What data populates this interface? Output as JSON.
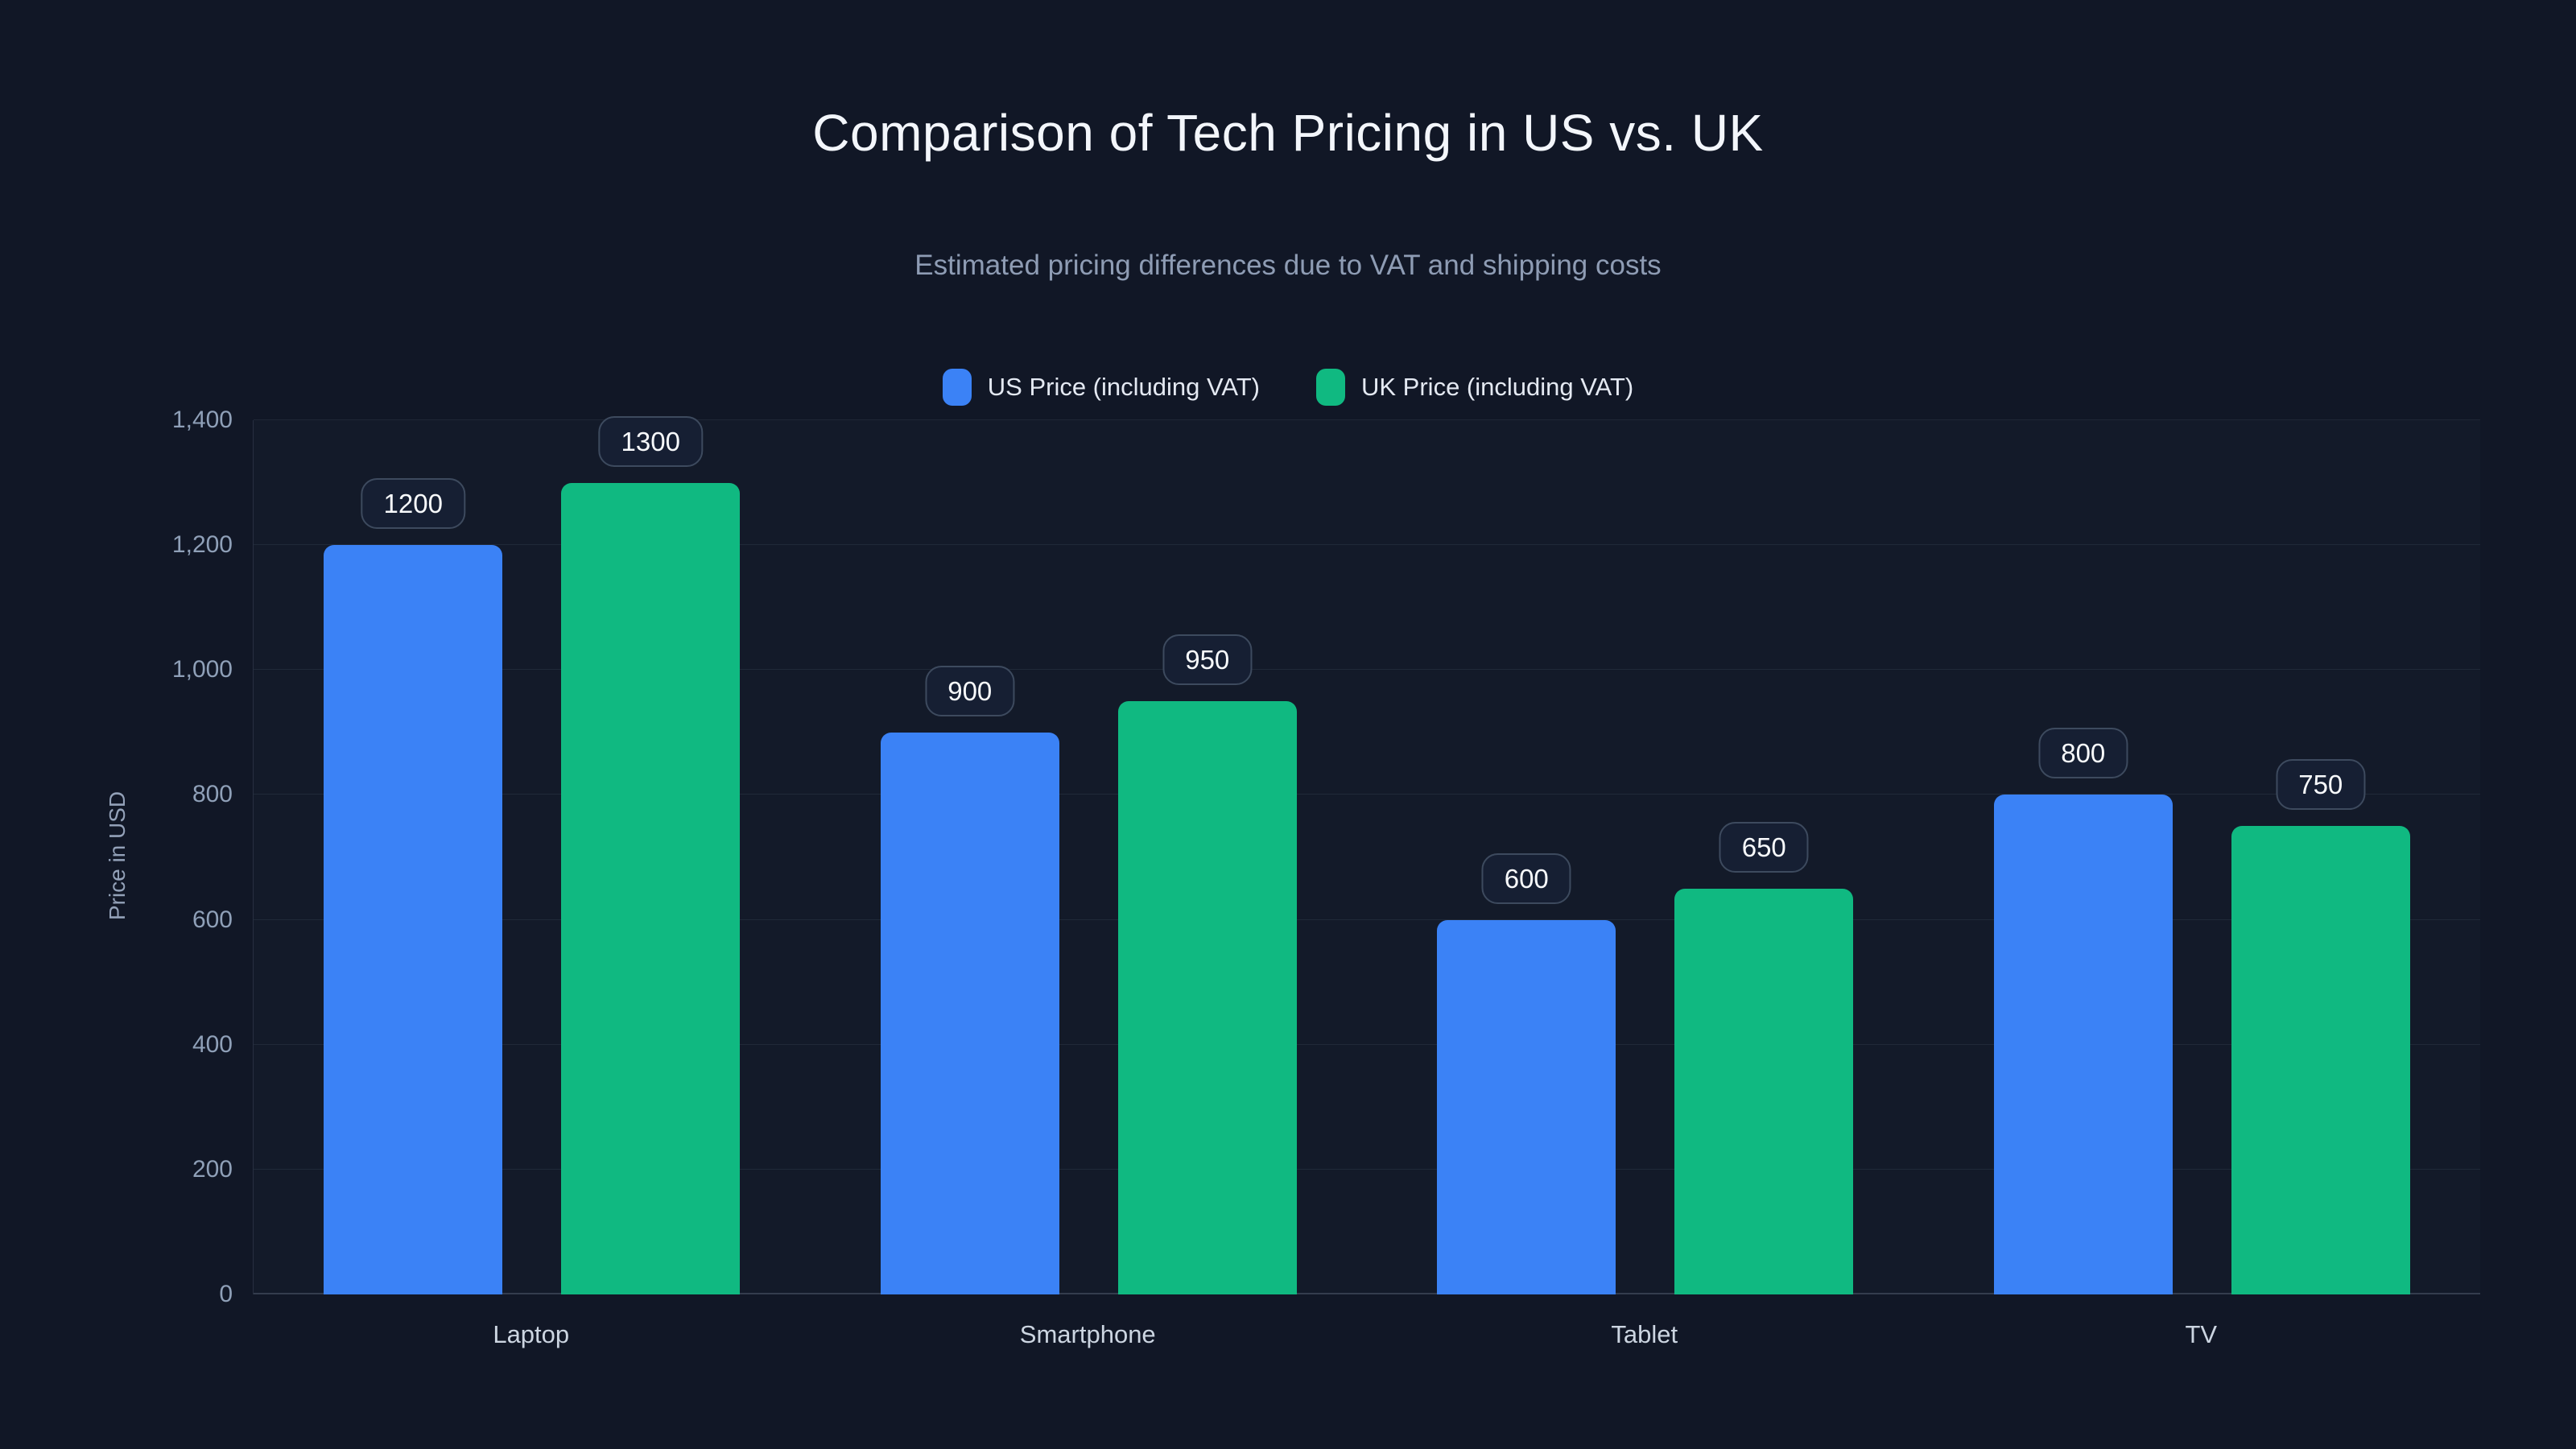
{
  "title": "Comparison of Tech Pricing in US vs. UK",
  "subtitle": "Estimated pricing differences due to VAT and shipping costs",
  "colors": {
    "background": "#111726",
    "us_series": "#3b82f6",
    "uk_series": "#10b981",
    "title_text": "#f3f6fb",
    "muted_text": "#8e9cb4",
    "badge_border": "#3d4a5e",
    "badge_background": "#161f33"
  },
  "chart_data": {
    "type": "bar",
    "categories": [
      "Laptop",
      "Smartphone",
      "Tablet",
      "TV"
    ],
    "series": [
      {
        "name": "US Price (including VAT)",
        "color": "#3b82f6",
        "values": [
          1200,
          900,
          600,
          800
        ]
      },
      {
        "name": "UK Price (including VAT)",
        "color": "#10b981",
        "values": [
          1300,
          950,
          650,
          750
        ]
      }
    ],
    "title": "Comparison of Tech Pricing in US vs. UK",
    "subtitle": "Estimated pricing differences due to VAT and shipping costs",
    "xlabel": "",
    "ylabel": "Price in USD",
    "ylim": [
      0,
      1400
    ],
    "ytick_step": 200,
    "ytick_labels": [
      "0",
      "200",
      "400",
      "600",
      "800",
      "1,000",
      "1,200",
      "1,400"
    ],
    "grid": true,
    "legend_position": "top",
    "value_labels": [
      "1200",
      "1300",
      "900",
      "950",
      "600",
      "650",
      "800",
      "750"
    ]
  }
}
